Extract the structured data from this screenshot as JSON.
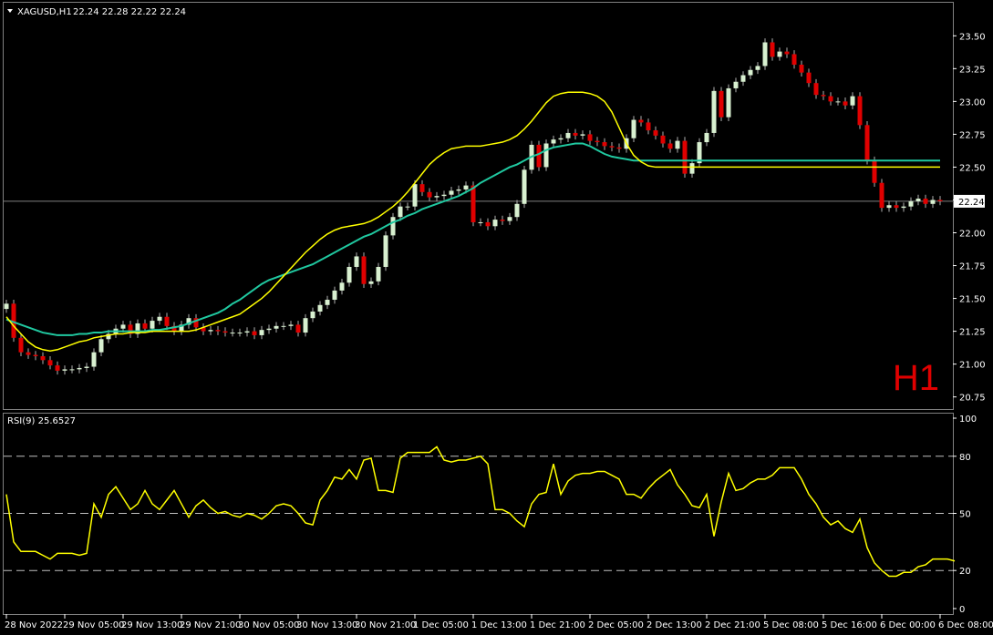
{
  "chart_data": [
    {
      "type": "candlestick",
      "symbol_label": "XAGUSD,H1",
      "ohlc_label": "22.24 22.28 22.22 22.24",
      "timeframe_badge": "H1",
      "current_price": 22.24,
      "current_price_label": "22.24",
      "ylim": [
        20.72,
        23.62
      ],
      "y_ticks": [
        "23.50",
        "23.25",
        "23.00",
        "22.75",
        "22.50",
        "22.25",
        "22.00",
        "21.75",
        "21.50",
        "21.25",
        "21.00",
        "20.75"
      ],
      "x_ticks": [
        {
          "index": 0,
          "label": "28 Nov 2022"
        },
        {
          "index": 8,
          "label": "29 Nov 05:00"
        },
        {
          "index": 16,
          "label": "29 Nov 13:00"
        },
        {
          "index": 24,
          "label": "29 Nov 21:00"
        },
        {
          "index": 32,
          "label": "30 Nov 05:00"
        },
        {
          "index": 40,
          "label": "30 Nov 13:00"
        },
        {
          "index": 48,
          "label": "30 Nov 21:00"
        },
        {
          "index": 56,
          "label": "1 Dec 05:00"
        },
        {
          "index": 64,
          "label": "1 Dec 13:00"
        },
        {
          "index": 72,
          "label": "1 Dec 21:00"
        },
        {
          "index": 80,
          "label": "2 Dec 05:00"
        },
        {
          "index": 88,
          "label": "2 Dec 13:00"
        },
        {
          "index": 96,
          "label": "2 Dec 21:00"
        },
        {
          "index": 104,
          "label": "5 Dec 08:00"
        },
        {
          "index": 112,
          "label": "5 Dec 16:00"
        },
        {
          "index": 120,
          "label": "6 Dec 00:00"
        },
        {
          "index": 128,
          "label": "6 Dec 08:00"
        }
      ],
      "close": [
        21.46,
        21.2,
        21.09,
        21.07,
        21.06,
        21.03,
        20.99,
        20.95,
        20.96,
        20.96,
        20.97,
        20.98,
        21.09,
        21.19,
        21.23,
        21.27,
        21.3,
        21.23,
        21.31,
        21.27,
        21.33,
        21.36,
        21.29,
        21.25,
        21.3,
        21.35,
        21.28,
        21.25,
        21.26,
        21.25,
        21.24,
        21.24,
        21.24,
        21.25,
        21.22,
        21.26,
        21.27,
        21.29,
        21.29,
        21.3,
        21.24,
        21.35,
        21.4,
        21.45,
        21.49,
        21.56,
        21.62,
        21.74,
        21.82,
        21.61,
        21.63,
        21.74,
        21.98,
        22.12,
        22.2,
        22.2,
        22.37,
        22.31,
        22.27,
        22.28,
        22.29,
        22.32,
        22.33,
        22.36,
        22.08,
        22.08,
        22.05,
        22.1,
        22.09,
        22.12,
        22.22,
        22.48,
        22.67,
        22.5,
        22.68,
        22.71,
        22.72,
        22.76,
        22.74,
        22.75,
        22.7,
        22.69,
        22.66,
        22.65,
        22.64,
        22.72,
        22.86,
        22.84,
        22.78,
        22.74,
        22.68,
        22.64,
        22.7,
        22.45,
        22.53,
        22.69,
        22.76,
        23.08,
        22.88,
        23.1,
        23.15,
        23.2,
        23.24,
        23.27,
        23.45,
        23.34,
        23.38,
        23.36,
        23.28,
        23.22,
        23.14,
        23.05,
        23.04,
        23.0,
        23.0,
        22.97,
        23.04,
        22.82,
        22.55,
        22.38,
        22.19,
        22.21,
        22.19,
        22.2,
        22.24,
        22.26,
        22.22,
        22.25,
        22.24
      ],
      "ema_fast": [
        21.36,
        21.29,
        21.23,
        21.17,
        21.13,
        21.11,
        21.1,
        21.11,
        21.13,
        21.15,
        21.17,
        21.18,
        21.2,
        21.21,
        21.22,
        21.23,
        21.23,
        21.24,
        21.24,
        21.24,
        21.25,
        21.25,
        21.25,
        21.25,
        21.25,
        21.25,
        21.26,
        21.28,
        21.3,
        21.32,
        21.34,
        21.36,
        21.38,
        21.42,
        21.46,
        21.5,
        21.55,
        21.61,
        21.67,
        21.73,
        21.79,
        21.85,
        21.9,
        21.95,
        21.99,
        22.02,
        22.04,
        22.05,
        22.06,
        22.07,
        22.09,
        22.12,
        22.16,
        22.2,
        22.25,
        22.31,
        22.38,
        22.45,
        22.52,
        22.57,
        22.61,
        22.64,
        22.65,
        22.66,
        22.66,
        22.66,
        22.67,
        22.68,
        22.69,
        22.71,
        22.74,
        22.79,
        22.85,
        22.92,
        22.99,
        23.04,
        23.06,
        23.07,
        23.07,
        23.07,
        23.06,
        23.04,
        23.0,
        22.92,
        22.8,
        22.68,
        22.59,
        22.54,
        22.51,
        22.5,
        22.5,
        22.5,
        22.5,
        22.5,
        22.5,
        22.5,
        22.5,
        22.5,
        22.5,
        22.5,
        22.5,
        22.5,
        22.5,
        22.5,
        22.5,
        22.5,
        22.5,
        22.5,
        22.5,
        22.5,
        22.5,
        22.5,
        22.5,
        22.5,
        22.5,
        22.5,
        22.5,
        22.5,
        22.5,
        22.5,
        22.5,
        22.5,
        22.5,
        22.5,
        22.5,
        22.5,
        22.5,
        22.5,
        22.5
      ],
      "ema_slow": [
        21.34,
        21.32,
        21.3,
        21.28,
        21.26,
        21.24,
        21.23,
        21.22,
        21.22,
        21.22,
        21.23,
        21.23,
        21.24,
        21.24,
        21.25,
        21.25,
        21.25,
        21.25,
        21.25,
        21.25,
        21.26,
        21.26,
        21.27,
        21.28,
        21.29,
        21.31,
        21.33,
        21.35,
        21.37,
        21.39,
        21.42,
        21.46,
        21.49,
        21.53,
        21.57,
        21.61,
        21.64,
        21.66,
        21.68,
        21.7,
        21.72,
        21.74,
        21.76,
        21.79,
        21.82,
        21.85,
        21.88,
        21.91,
        21.94,
        21.97,
        21.99,
        22.02,
        22.05,
        22.08,
        22.1,
        22.13,
        22.15,
        22.18,
        22.2,
        22.22,
        22.24,
        22.26,
        22.28,
        22.31,
        22.34,
        22.38,
        22.41,
        22.44,
        22.47,
        22.5,
        22.52,
        22.55,
        22.58,
        22.6,
        22.63,
        22.65,
        22.66,
        22.67,
        22.68,
        22.68,
        22.66,
        22.63,
        22.6,
        22.58,
        22.57,
        22.56,
        22.55,
        22.55,
        22.55,
        22.55,
        22.55,
        22.55,
        22.55,
        22.55,
        22.55,
        22.55,
        22.55,
        22.55,
        22.55,
        22.55,
        22.55,
        22.55,
        22.55,
        22.55,
        22.55,
        22.55,
        22.55,
        22.55,
        22.55,
        22.55,
        22.55,
        22.55,
        22.55,
        22.55,
        22.55,
        22.55,
        22.55,
        22.55,
        22.55,
        22.55,
        22.55,
        22.55,
        22.55,
        22.55,
        22.55,
        22.55,
        22.55,
        22.55,
        22.55
      ],
      "colors": {
        "bull_body": "#d8f0d0",
        "bear_body": "#e00000",
        "wick": "#b0b0b0",
        "ema_fast": "#ffff00",
        "ema_slow": "#20c8a0",
        "badge": "#e00000",
        "grid_line": "#808080"
      }
    },
    {
      "type": "line",
      "label": "RSI(9) 25.6527",
      "ylim": [
        0,
        100
      ],
      "y_ticks": [
        "100",
        "80",
        "50",
        "20",
        "0"
      ],
      "levels": [
        80,
        50,
        20
      ],
      "values": [
        60,
        35,
        30,
        30,
        30,
        28,
        26,
        29,
        29,
        29,
        28,
        29,
        55,
        48,
        60,
        64,
        58,
        52,
        55,
        62,
        55,
        52,
        57,
        62,
        55,
        48,
        54,
        57,
        53,
        50,
        51,
        49,
        48,
        50,
        49,
        47,
        50,
        54,
        55,
        54,
        50,
        45,
        44,
        57,
        62,
        69,
        68,
        73,
        68,
        78,
        79,
        62,
        62,
        61,
        79,
        82,
        82,
        82,
        82,
        85,
        78,
        77,
        78,
        78,
        79,
        80,
        76,
        52,
        52,
        50,
        46,
        43,
        55,
        60,
        61,
        76,
        60,
        67,
        70,
        71,
        71,
        72,
        72,
        70,
        68,
        60,
        60,
        58,
        63,
        67,
        70,
        73,
        65,
        60,
        54,
        53,
        60,
        38,
        56,
        71,
        62,
        63,
        66,
        68,
        68,
        70,
        74,
        74,
        74,
        68,
        60,
        55,
        48,
        44,
        46,
        42,
        40,
        47,
        32,
        24,
        20,
        17,
        17,
        19,
        19,
        22,
        23,
        26,
        26,
        26,
        25
      ],
      "color": "#ffff00"
    }
  ]
}
